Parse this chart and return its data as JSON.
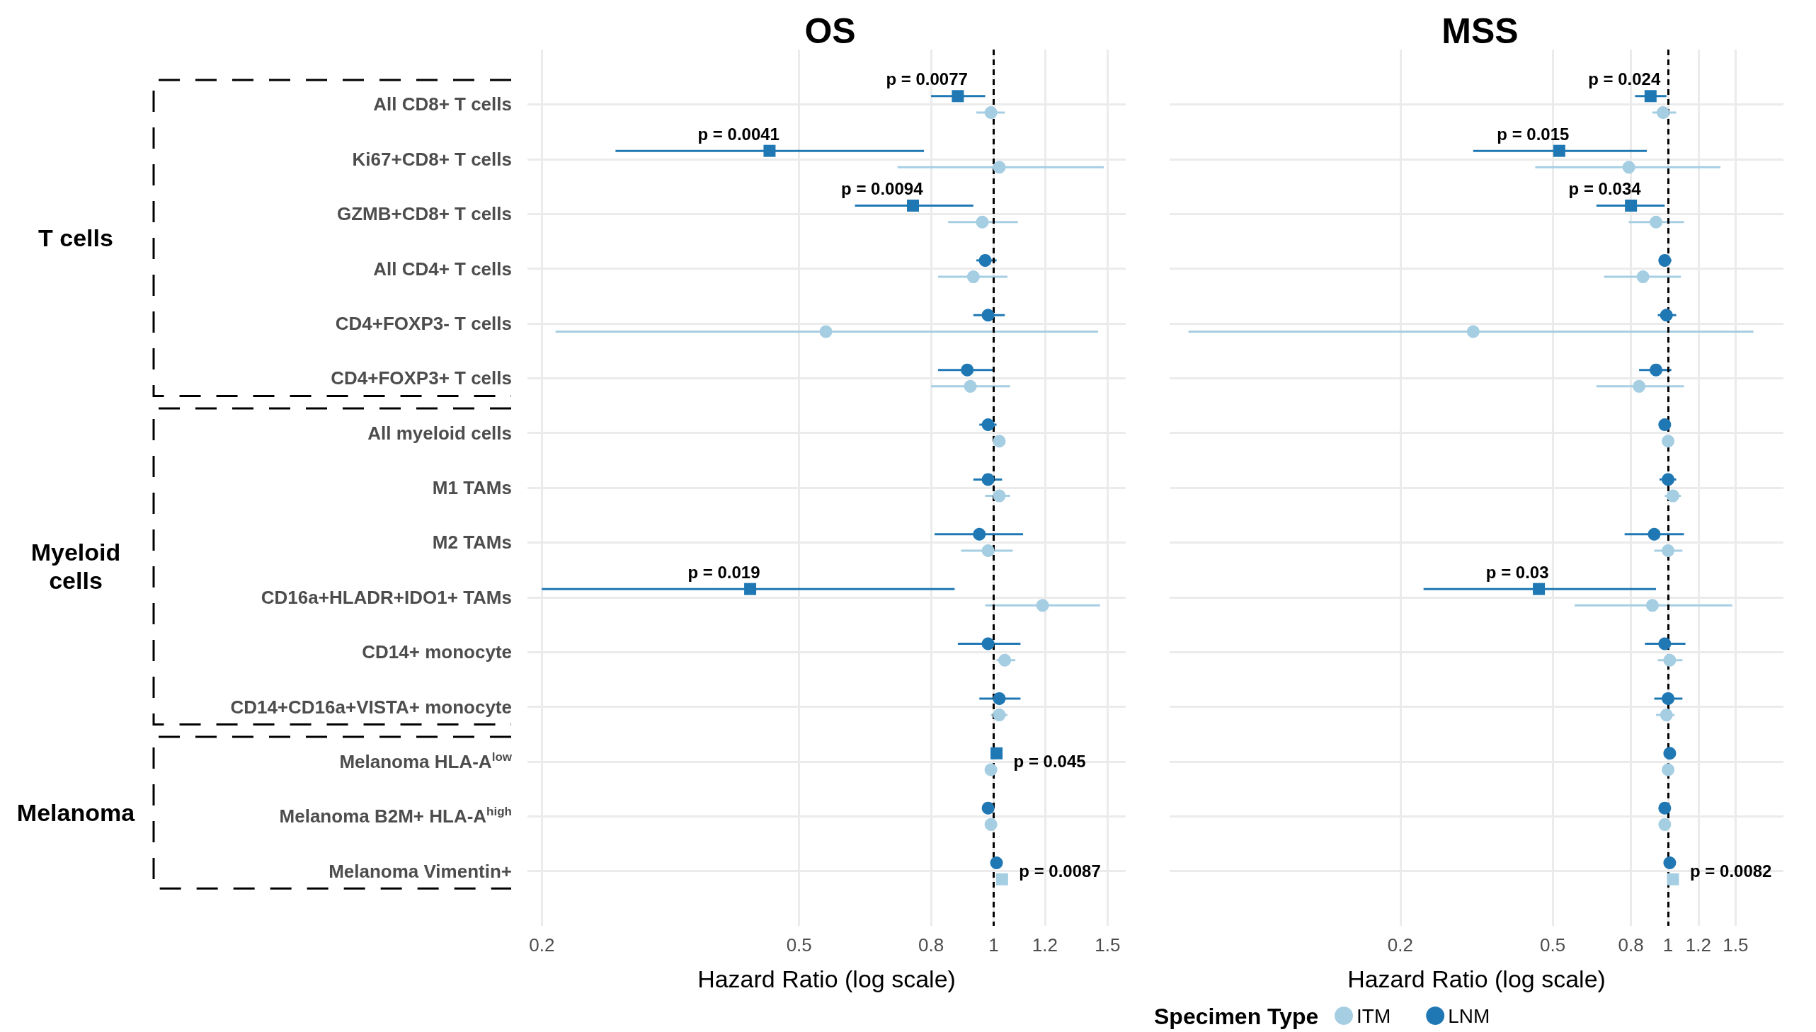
{
  "chart_data": [
    {
      "type": "scatter",
      "title": "OS",
      "xlabel": "Hazard Ratio (log scale)",
      "orientation": "horizontal",
      "log": "x",
      "categories": [
        "All CD8+ T cells",
        "Ki67+CD8+ T cells",
        "GZMB+CD8+ T cells",
        "All CD4+ T cells",
        "CD4+FOXP3- T cells",
        "CD4+FOXP3+ T cells",
        "All myeloid cells",
        "M1 TAMs",
        "M2 TAMs",
        "CD16a+HLADR+IDO1+ TAMs",
        "CD14+ monocyte",
        "CD14+CD16a+VISTA+ monocyte",
        "Melanoma HLA-A$^{low}$",
        "Melanoma B2M+ HLA-A$^{high}$",
        "Melanoma Vimentin+"
      ],
      "xlim": [
        0.19,
        1.6
      ],
      "xticks": [
        0.2,
        0.5,
        0.8,
        1,
        1.2,
        1.5
      ],
      "grid": true,
      "series": [
        {
          "color": "#a6cee3",
          "marker": "circle",
          "values": [
            0.99,
            1.02,
            0.96,
            0.93,
            0.55,
            0.92,
            1.02,
            1.02,
            0.98,
            1.19,
            1.04,
            1.02,
            0.99,
            0.99,
            null
          ],
          "errors": [
            [
              0.94,
              1.04
            ],
            [
              0.71,
              1.48
            ],
            [
              0.85,
              1.09
            ],
            [
              0.82,
              1.05
            ],
            [
              0.21,
              1.45
            ],
            [
              0.8,
              1.06
            ],
            null,
            [
              0.97,
              1.06
            ],
            [
              0.89,
              1.07
            ],
            [
              0.97,
              1.46
            ],
            [
              1.01,
              1.08
            ],
            [
              0.99,
              1.05
            ],
            null,
            null,
            null
          ]
        },
        {
          "color": "#1f78b4",
          "marker": "circle",
          "values": [
            null,
            null,
            null,
            0.97,
            0.98,
            0.91,
            0.98,
            0.98,
            0.95,
            null,
            0.98,
            1.02,
            null,
            0.98,
            1.01
          ],
          "errors": [
            null,
            null,
            null,
            [
              0.94,
              1.01
            ],
            [
              0.93,
              1.04
            ],
            [
              0.82,
              1.0
            ],
            [
              0.95,
              1.01
            ],
            [
              0.93,
              1.03
            ],
            [
              0.81,
              1.11
            ],
            null,
            [
              0.88,
              1.1
            ],
            [
              0.95,
              1.1
            ],
            null,
            null,
            null
          ]
        },
        {
          "color": "#a6cee3",
          "marker": "square",
          "values": [
            null,
            null,
            null,
            null,
            null,
            null,
            null,
            null,
            null,
            null,
            null,
            null,
            null,
            null,
            1.03
          ]
        },
        {
          "color": "#1f78b4",
          "marker": "square",
          "values": [
            0.88,
            0.45,
            0.75,
            null,
            null,
            null,
            null,
            null,
            null,
            0.42,
            null,
            null,
            1.01,
            null,
            null
          ],
          "errors": [
            [
              0.8,
              0.97
            ],
            [
              0.26,
              0.78
            ],
            [
              0.61,
              0.93
            ],
            null,
            null,
            null,
            null,
            null,
            null,
            [
              0.2,
              0.87
            ],
            null,
            null,
            null,
            null,
            null
          ]
        }
      ],
      "ref_lines": [
        {
          "axis": "x",
          "value": 1,
          "color": "#000000",
          "line_style": "dashed"
        }
      ],
      "annotations": [
        "T cells",
        "Myeloid cells",
        "Melanoma",
        {
          "text": "p = 0.0077",
          "x": 0.88,
          "y": "All CD8+ T cells"
        },
        {
          "text": "p = 0.0041",
          "x": 0.45,
          "y": "Ki67+CD8+ T cells"
        },
        {
          "text": "p = 0.0094",
          "x": 0.75,
          "y": "GZMB+CD8+ T cells"
        },
        {
          "text": "p = 0.019",
          "x": 0.42,
          "y": "CD16a+HLADR+IDO1+ TAMs"
        },
        {
          "text": "p = 0.045",
          "x": 1.01,
          "y": "Melanoma HLA-A$^{low}$"
        },
        {
          "text": "p = 0.0087",
          "x": 1.03,
          "y": "Melanoma Vimentin+"
        }
      ]
    },
    {
      "type": "scatter",
      "title": "MSS",
      "xlabel": "Hazard Ratio (log scale)",
      "orientation": "horizontal",
      "log": "x",
      "tick_labels": "x",
      "categories": [
        "All CD8+ T cells",
        "Ki67+CD8+ T cells",
        "GZMB+CD8+ T cells",
        "All CD4+ T cells",
        "CD4+FOXP3- T cells",
        "CD4+FOXP3+ T cells",
        "All myeloid cells",
        "M1 TAMs",
        "M2 TAMs",
        "CD16a+HLADR+IDO1+ TAMs",
        "CD14+ monocyte",
        "CD14+CD16a+VISTA+ monocyte",
        "Melanoma HLA-A$^{low}$",
        "Melanoma B2M+ HLA-A$^{high}$",
        "Melanoma Vimentin+"
      ],
      "xlim": [
        0.05,
        2
      ],
      "xticks": [
        0.2,
        0.5,
        0.8,
        1,
        1.2,
        1.5
      ],
      "grid": true,
      "legend": "bottom",
      "legend_title": "Specimen Type",
      "series": [
        {
          "name": "ITM",
          "color": "#a6cee3",
          "marker": "circle",
          "values": [
            0.97,
            0.79,
            0.93,
            0.86,
            0.31,
            0.84,
            1.0,
            1.03,
            1.0,
            0.91,
            1.01,
            0.99,
            1.0,
            0.98,
            null
          ],
          "errors": [
            [
              0.91,
              1.05
            ],
            [
              0.45,
              1.37
            ],
            [
              0.79,
              1.1
            ],
            [
              0.68,
              1.08
            ],
            [
              0.056,
              1.67
            ],
            [
              0.65,
              1.1
            ],
            null,
            [
              0.98,
              1.08
            ],
            [
              0.92,
              1.09
            ],
            [
              0.57,
              1.47
            ],
            [
              0.94,
              1.09
            ],
            [
              0.93,
              1.04
            ],
            null,
            null,
            null
          ]
        },
        {
          "name": "LNM",
          "color": "#1f78b4",
          "marker": "circle",
          "values": [
            null,
            null,
            null,
            0.98,
            0.99,
            0.93,
            0.98,
            1.0,
            0.92,
            null,
            0.98,
            1.0,
            1.01,
            0.98,
            1.01
          ],
          "errors": [
            null,
            null,
            null,
            [
              0.98,
              1.02
            ],
            [
              0.94,
              1.05
            ],
            [
              0.84,
              1.02
            ],
            null,
            [
              0.95,
              1.05
            ],
            [
              0.77,
              1.1
            ],
            null,
            [
              0.87,
              1.11
            ],
            [
              0.92,
              1.09
            ],
            null,
            null,
            null
          ]
        },
        {
          "color": "#a6cee3",
          "marker": "square",
          "values": [
            null,
            null,
            null,
            null,
            null,
            null,
            null,
            null,
            null,
            null,
            null,
            null,
            null,
            null,
            1.03
          ]
        },
        {
          "color": "#1f78b4",
          "marker": "square",
          "values": [
            0.9,
            0.52,
            0.8,
            null,
            null,
            null,
            null,
            null,
            null,
            0.46,
            null,
            null,
            null,
            null,
            null
          ],
          "errors": [
            [
              0.82,
              0.99
            ],
            [
              0.31,
              0.88
            ],
            [
              0.65,
              0.98
            ],
            null,
            null,
            null,
            null,
            null,
            null,
            [
              0.23,
              0.93
            ],
            null,
            null,
            null,
            null,
            null
          ]
        }
      ],
      "ref_lines": [
        {
          "axis": "x",
          "value": 1,
          "color": "#000000",
          "line_style": "dashed"
        }
      ],
      "annotations": [
        {
          "text": "p = 0.024",
          "x": 0.9,
          "y": "All CD8+ T cells"
        },
        {
          "text": "p = 0.015",
          "x": 0.52,
          "y": "Ki67+CD8+ T cells"
        },
        {
          "text": "p = 0.034",
          "x": 0.8,
          "y": "GZMB+CD8+ T cells"
        },
        {
          "text": "p = 0.03",
          "x": 0.46,
          "y": "CD16a+HLADR+IDO1+ TAMs"
        },
        {
          "text": "p = 0.0082",
          "x": 1.03,
          "y": "Melanoma Vimentin+"
        }
      ]
    }
  ]
}
